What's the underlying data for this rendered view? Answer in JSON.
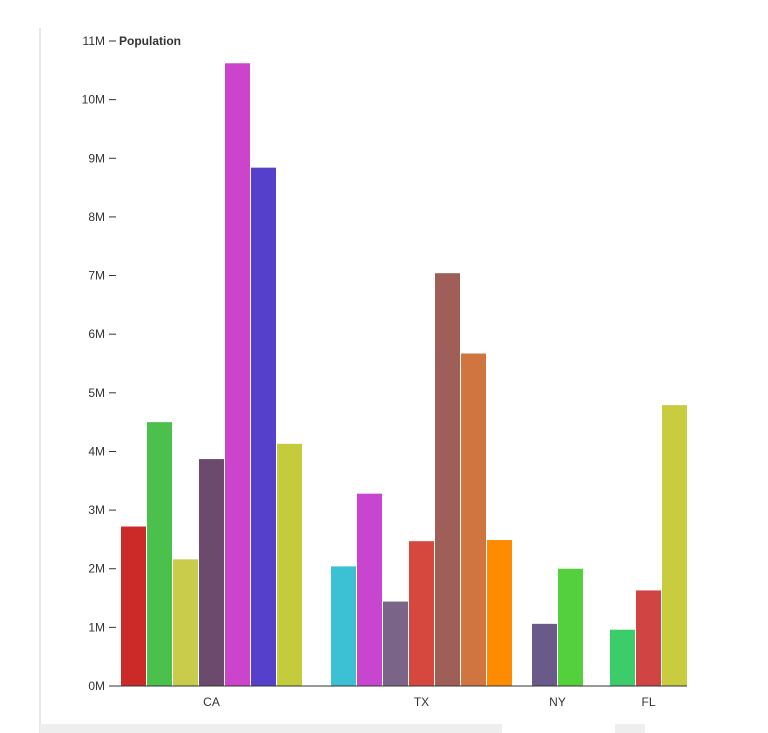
{
  "chart_data": {
    "type": "bar",
    "ylabel": "Population",
    "ylim": [
      0,
      11000000
    ],
    "y_ticks": [
      {
        "value": 0,
        "label": "0M"
      },
      {
        "value": 1000000,
        "label": "1M"
      },
      {
        "value": 2000000,
        "label": "2M"
      },
      {
        "value": 3000000,
        "label": "3M"
      },
      {
        "value": 4000000,
        "label": "4M"
      },
      {
        "value": 5000000,
        "label": "5M"
      },
      {
        "value": 6000000,
        "label": "6M"
      },
      {
        "value": 7000000,
        "label": "7M"
      },
      {
        "value": 8000000,
        "label": "8M"
      },
      {
        "value": 9000000,
        "label": "9M"
      },
      {
        "value": 10000000,
        "label": "10M"
      },
      {
        "value": 11000000,
        "label": "11M"
      }
    ],
    "grid": false,
    "legend": "none",
    "groups": [
      {
        "category": "CA",
        "bars": [
          {
            "value": 2720000,
            "color": "#cc2929"
          },
          {
            "value": 4500000,
            "color": "#4cc04c"
          },
          {
            "value": 2160000,
            "color": "#c8cc4a"
          },
          {
            "value": 3870000,
            "color": "#6b4a6e"
          },
          {
            "value": 10620000,
            "color": "#cc44cc"
          },
          {
            "value": 8840000,
            "color": "#5540cc"
          },
          {
            "value": 4130000,
            "color": "#c4cc3c"
          }
        ]
      },
      {
        "category": "TX",
        "bars": [
          {
            "value": 2040000,
            "color": "#3cc0d4"
          },
          {
            "value": 3280000,
            "color": "#c845d0"
          },
          {
            "value": 1440000,
            "color": "#7a6488"
          },
          {
            "value": 2470000,
            "color": "#d6473e"
          },
          {
            "value": 7040000,
            "color": "#a05e58"
          },
          {
            "value": 5670000,
            "color": "#d17540"
          },
          {
            "value": 2490000,
            "color": "#ff8c00"
          }
        ]
      },
      {
        "category": "NY",
        "bars": [
          {
            "value": 1060000,
            "color": "#6a5a8a"
          },
          {
            "value": 2000000,
            "color": "#53d03c"
          }
        ]
      },
      {
        "category": "FL",
        "bars": [
          {
            "value": 960000,
            "color": "#3ccc6a"
          },
          {
            "value": 1630000,
            "color": "#d04444"
          },
          {
            "value": 4790000,
            "color": "#c9cc3e"
          }
        ]
      }
    ]
  }
}
